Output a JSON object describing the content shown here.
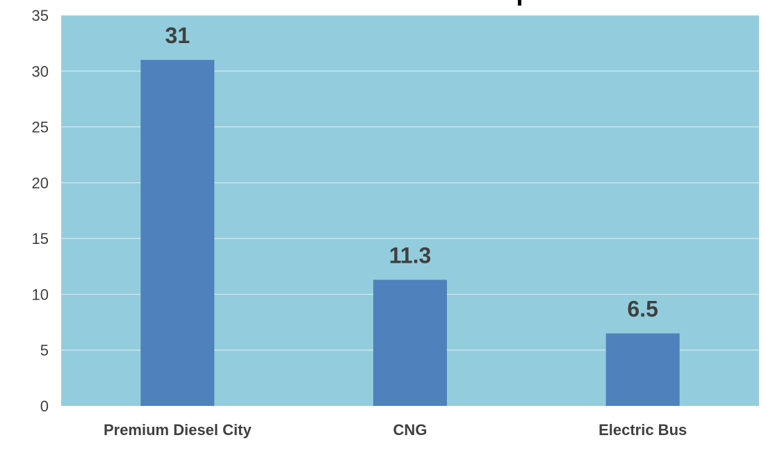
{
  "chart_data": {
    "type": "bar",
    "title": "",
    "xlabel": "",
    "ylabel": "",
    "categories": [
      "Premium Diesel City",
      "CNG",
      "Electric Bus"
    ],
    "values": [
      31,
      11.3,
      6.5
    ],
    "data_labels": [
      "31",
      "11.3",
      "6.5"
    ],
    "ylim": [
      0,
      35
    ],
    "yticks": [
      0,
      5,
      10,
      15,
      20,
      25,
      30,
      35
    ],
    "grid": true,
    "legend": "none",
    "colors": {
      "bar": "#4f81bd",
      "plot_background": "#93cddd",
      "gridline": "#d9e8ee"
    }
  }
}
